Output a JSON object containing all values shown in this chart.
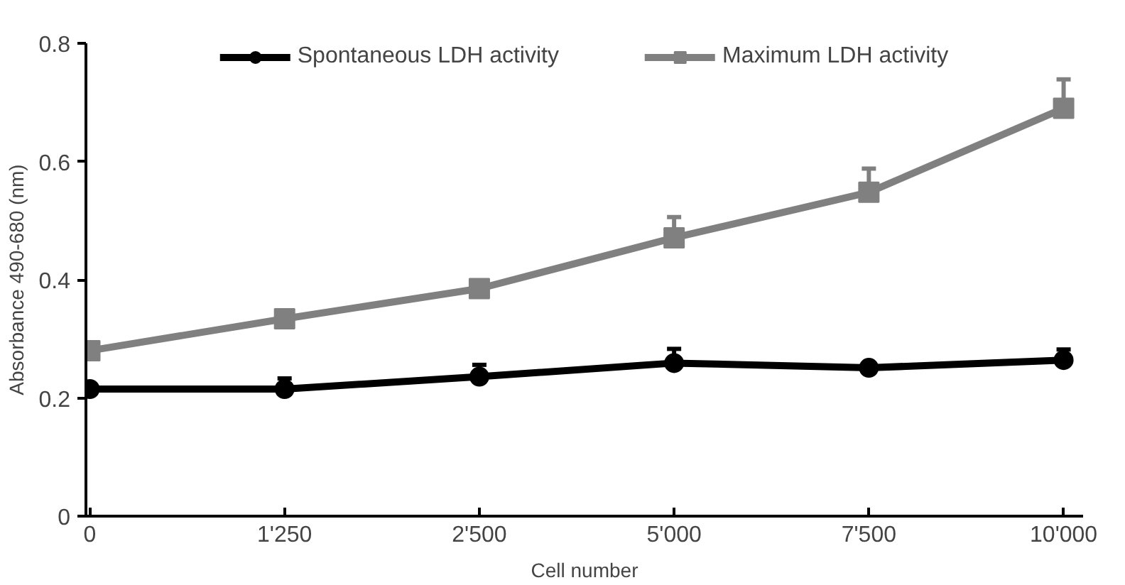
{
  "chart_data": {
    "type": "line",
    "xlabel": "Cell number",
    "ylabel": "Absorbance 490-680 (nm)",
    "categories": [
      "0",
      "1'250",
      "2'500",
      "5'000",
      "7'500",
      "10'000"
    ],
    "series": [
      {
        "name": "Spontaneous LDH activity",
        "color": "#000000",
        "marker": "circle",
        "values": [
          0.215,
          0.215,
          0.236,
          0.259,
          0.251,
          0.264
        ],
        "errors": [
          null,
          [
            0.215,
            0.233
          ],
          [
            0.236,
            0.256
          ],
          [
            0.259,
            0.283
          ],
          null,
          [
            0.264,
            0.282
          ]
        ]
      },
      {
        "name": "Maximum LDH activity",
        "color": "#808080",
        "marker": "square",
        "values": [
          0.28,
          0.334,
          0.385,
          0.471,
          0.548,
          0.69
        ],
        "errors": [
          null,
          null,
          null,
          [
            0.471,
            0.506
          ],
          [
            0.548,
            0.588
          ],
          [
            0.69,
            0.739
          ]
        ]
      }
    ],
    "ylim": [
      0,
      0.8
    ],
    "yticks": [
      0,
      0.2,
      0.4,
      0.6,
      0.8
    ],
    "grid": false,
    "legend": "top",
    "line_style": "solid"
  }
}
